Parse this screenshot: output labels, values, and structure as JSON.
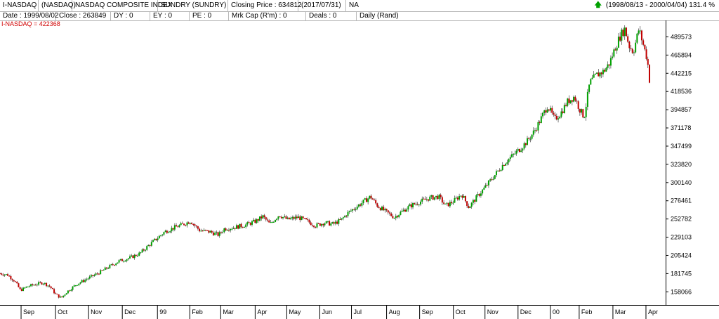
{
  "header": {
    "symbol": "I-NASDAQ",
    "exchange": "(NASDAQ)",
    "name": "NASDAQ COMPOSITE INDEX",
    "sector": "SUNDRY (SUNDRY)",
    "closing_price": "Closing Price : 634812",
    "closing_date": "(2017/07/31)",
    "na": "NA",
    "range": "(1998/08/13 - 2000/04/04)",
    "percent": "131.4 %"
  },
  "info": {
    "date": "Date : 1999/08/02",
    "close": "Close : 263849",
    "dy": "DY : 0",
    "ey": "EY : 0",
    "pe": "PE : 0",
    "mkcap": "Mrk Cap (R'm) : 0",
    "deals": "Deals : 0",
    "period": "Daily (Rand)"
  },
  "series_label": "I-NASDAQ = 422368",
  "colors": {
    "up": "#00a000",
    "down": "#c00000",
    "label": "#d00000",
    "wick": "#000000"
  },
  "chart_data": {
    "type": "candlestick",
    "title": "",
    "xlabel": "",
    "ylabel": "",
    "ylim": [
      141000,
      511000
    ],
    "yticks": [
      158066,
      181745,
      205424,
      229103,
      252782,
      276461,
      300140,
      323820,
      347499,
      371178,
      394857,
      418536,
      442215,
      465894,
      489573
    ],
    "x_ticks": [
      "Sep",
      "Oct",
      "Nov",
      "Dec",
      "99",
      "Feb",
      "Mar",
      "Apr",
      "May",
      "Jun",
      "Jul",
      "Aug",
      "Sep",
      "Oct",
      "Nov",
      "Dec",
      "00",
      "Feb",
      "Mar",
      "Apr"
    ],
    "x_tick_pos": [
      31,
      80,
      127,
      175,
      225,
      271,
      315,
      364,
      409,
      456,
      501,
      551,
      598,
      646,
      691,
      738,
      784,
      825,
      873,
      920
    ],
    "x_span": [
      1,
      948
    ],
    "close_path": [
      [
        1,
        182000
      ],
      [
        12,
        180000
      ],
      [
        22,
        172000
      ],
      [
        30,
        160000
      ],
      [
        40,
        165000
      ],
      [
        52,
        168000
      ],
      [
        62,
        170000
      ],
      [
        72,
        165000
      ],
      [
        80,
        155000
      ],
      [
        88,
        150000
      ],
      [
        96,
        158000
      ],
      [
        110,
        168000
      ],
      [
        125,
        175000
      ],
      [
        140,
        182000
      ],
      [
        155,
        190000
      ],
      [
        170,
        198000
      ],
      [
        185,
        202000
      ],
      [
        200,
        208000
      ],
      [
        212,
        218000
      ],
      [
        225,
        228000
      ],
      [
        235,
        236000
      ],
      [
        250,
        242000
      ],
      [
        262,
        246000
      ],
      [
        272,
        250000
      ],
      [
        285,
        238000
      ],
      [
        300,
        236000
      ],
      [
        312,
        232000
      ],
      [
        320,
        240000
      ],
      [
        335,
        242000
      ],
      [
        350,
        245000
      ],
      [
        365,
        250000
      ],
      [
        375,
        256000
      ],
      [
        385,
        246000
      ],
      [
        398,
        258000
      ],
      [
        410,
        252000
      ],
      [
        425,
        255000
      ],
      [
        438,
        250000
      ],
      [
        450,
        244000
      ],
      [
        462,
        248000
      ],
      [
        475,
        246000
      ],
      [
        487,
        252000
      ],
      [
        495,
        260000
      ],
      [
        507,
        268000
      ],
      [
        518,
        275000
      ],
      [
        528,
        282000
      ],
      [
        538,
        270000
      ],
      [
        550,
        262000
      ],
      [
        562,
        255000
      ],
      [
        572,
        262000
      ],
      [
        585,
        270000
      ],
      [
        598,
        275000
      ],
      [
        612,
        280000
      ],
      [
        625,
        282000
      ],
      [
        635,
        270000
      ],
      [
        645,
        275000
      ],
      [
        658,
        285000
      ],
      [
        668,
        268000
      ],
      [
        680,
        282000
      ],
      [
        692,
        295000
      ],
      [
        705,
        310000
      ],
      [
        718,
        325000
      ],
      [
        730,
        335000
      ],
      [
        742,
        345000
      ],
      [
        752,
        355000
      ],
      [
        762,
        368000
      ],
      [
        770,
        382000
      ],
      [
        780,
        400000
      ],
      [
        790,
        382000
      ],
      [
        800,
        392000
      ],
      [
        808,
        405000
      ],
      [
        818,
        412000
      ],
      [
        826,
        395000
      ],
      [
        832,
        385000
      ],
      [
        840,
        430000
      ],
      [
        850,
        440000
      ],
      [
        860,
        445000
      ],
      [
        868,
        455000
      ],
      [
        876,
        475000
      ],
      [
        884,
        492000
      ],
      [
        890,
        500000
      ],
      [
        896,
        478000
      ],
      [
        902,
        470000
      ],
      [
        910,
        500000
      ],
      [
        916,
        480000
      ],
      [
        922,
        460000
      ],
      [
        926,
        425000
      ]
    ]
  }
}
